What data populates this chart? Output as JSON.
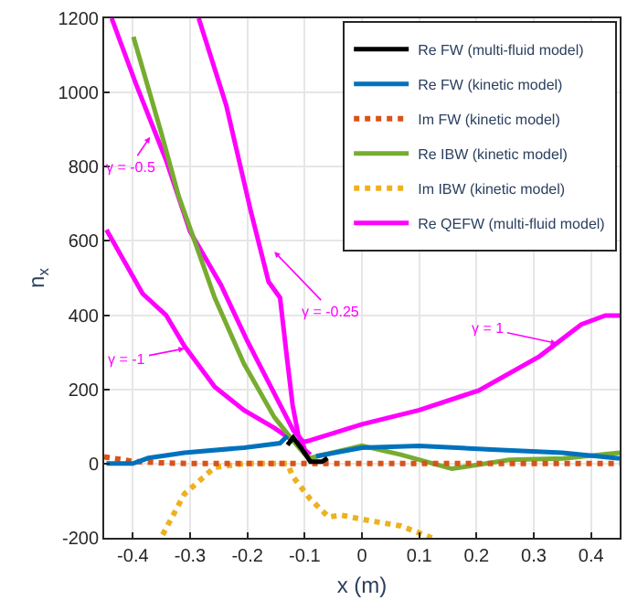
{
  "chart_data": {
    "type": "line",
    "xlabel": "x (m)",
    "ylabel": "n$_{x}$",
    "xlim": [
      -0.45,
      0.45
    ],
    "xticks": [
      -0.4,
      -0.3,
      -0.2,
      -0.1,
      0,
      0.1,
      0.2,
      0.3,
      0.4
    ],
    "ylim": [
      -200,
      1200
    ],
    "yticks": [
      -200,
      0,
      200,
      400,
      600,
      800,
      1000,
      1200
    ],
    "grid": true,
    "legend": "top right",
    "marker": "none",
    "series": [
      {
        "name": "Re FW (multi-fluid model)",
        "color": "#000000",
        "line_style": "solid",
        "x": [
          -0.13,
          -0.12,
          -0.105,
          -0.09,
          -0.07,
          -0.06
        ],
        "values": [
          50,
          70,
          40,
          5,
          5,
          15
        ]
      },
      {
        "name": "Re FW (kinetic model)",
        "color": "#0072bd",
        "line_style": "solid",
        "x": [
          -0.446,
          -0.4,
          -0.373,
          -0.31,
          -0.206,
          -0.143,
          -0.13,
          -0.12,
          -0.08,
          0,
          0.1,
          0.226,
          0.35,
          0.45
        ],
        "values": [
          0,
          0,
          15,
          29,
          43,
          55,
          75,
          null,
          20,
          43,
          48,
          38,
          29,
          14
        ]
      },
      {
        "name": "Im FW (kinetic model)",
        "color": "#d95319",
        "line_style": "dotted",
        "x": [
          -0.45,
          -0.4,
          -0.35,
          -0.3,
          -0.2,
          -0.1,
          0,
          0.1,
          0.2,
          0.3,
          0.45
        ],
        "values": [
          18,
          6,
          2,
          0,
          0,
          0,
          0,
          0,
          0,
          0,
          0
        ]
      },
      {
        "name": "Re IBW (kinetic model)",
        "color": "#77ac30",
        "line_style": "solid",
        "x": [
          -0.399,
          -0.351,
          -0.32,
          -0.279,
          -0.257,
          -0.206,
          -0.153,
          -0.121,
          -0.1,
          -0.09,
          0,
          0.068,
          0.157,
          0.257,
          0.352,
          0.45
        ],
        "values": [
          1150,
          895,
          721,
          543,
          447,
          269,
          125,
          63,
          25,
          15,
          48,
          24,
          -14,
          10,
          14,
          29
        ]
      },
      {
        "name": "Im IBW (kinetic model)",
        "color": "#edb120",
        "line_style": "dotted",
        "x": [
          -0.348,
          -0.31,
          -0.257,
          -0.206,
          -0.13,
          -0.121,
          -0.09,
          -0.058,
          -0.036,
          0.014,
          0.068,
          0.122
        ],
        "values": [
          -192,
          -82,
          -10,
          0,
          0,
          -34,
          -96,
          -144,
          -139,
          -154,
          -168,
          -200
        ]
      },
      {
        "name": "Re QEFW (multi-fluid model)",
        "color": "#ff00ff",
        "line_style": "solid",
        "x": [
          -0.446,
          -0.383,
          -0.342,
          -0.31,
          -0.257,
          -0.206,
          -0.153,
          -0.112,
          -0.09
        ],
        "values": [
          630,
          458,
          400,
          317,
          207,
          144,
          96,
          53,
          24
        ]
      },
      {
        "color": "#ff00ff",
        "line_style": "solid",
        "x": [
          -0.437,
          -0.395,
          -0.342,
          -0.3,
          -0.246,
          -0.2,
          -0.15,
          -0.12,
          -0.1
        ],
        "values": [
          1200,
          1025,
          818,
          625,
          481,
          330,
          180,
          90,
          55
        ]
      },
      {
        "color": "#ff00ff",
        "line_style": "solid",
        "x": [
          -0.285,
          -0.237,
          -0.194,
          -0.163,
          -0.143,
          -0.131,
          -0.121,
          -0.111,
          -0.1
        ],
        "values": [
          1200,
          966,
          680,
          490,
          447,
          286,
          157,
          76,
          40
        ]
      },
      {
        "color": "#ff00ff",
        "line_style": "solid",
        "x": [
          -0.11,
          -0.09,
          0,
          0.1,
          0.204,
          0.31,
          0.383,
          0.425,
          0.45
        ],
        "values": [
          55,
          63,
          106,
          144,
          197,
          289,
          375,
          399,
          399
        ]
      }
    ],
    "annotations": [
      {
        "text": "γ = -0.5",
        "x": -0.37,
        "y": 880
      },
      {
        "text": "γ = -0.25",
        "x": -0.153,
        "y": 571
      },
      {
        "text": "γ = -1",
        "x": -0.31,
        "y": 310
      },
      {
        "text": "γ = 1",
        "x": 0.34,
        "y": 324
      }
    ]
  }
}
